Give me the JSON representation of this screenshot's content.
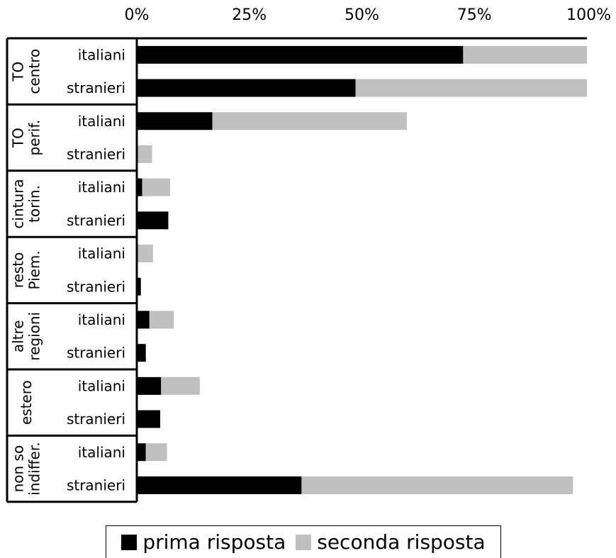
{
  "chart_data": {
    "type": "bar",
    "orientation": "horizontal",
    "stacked": true,
    "x_ticks": [
      "0%",
      "25%",
      "50%",
      "75%",
      "100%"
    ],
    "xlim": [
      0,
      100
    ],
    "groups": [
      {
        "label": [
          "TO",
          "centro"
        ]
      },
      {
        "label": [
          "TO",
          "perif."
        ]
      },
      {
        "label": [
          "cintura",
          "torin."
        ]
      },
      {
        "label": [
          "resto",
          "Piem."
        ]
      },
      {
        "label": [
          "altre",
          "regioni"
        ]
      },
      {
        "label": [
          "estero"
        ]
      },
      {
        "label": [
          "non so",
          "indiffer."
        ]
      }
    ],
    "subcategories": [
      "italiani",
      "stranieri"
    ],
    "series": [
      {
        "name": "prima risposta",
        "color": "#000000",
        "values": [
          72.5,
          48.6,
          16.8,
          0.0,
          1.2,
          7.0,
          0.0,
          0.9,
          2.8,
          2.0,
          5.4,
          5.2,
          2.0,
          36.6
        ]
      },
      {
        "name": "seconda risposta",
        "color": "#c0c0c0",
        "values": [
          27.5,
          51.4,
          43.2,
          3.4,
          6.2,
          0.0,
          3.6,
          0.0,
          5.4,
          0.0,
          8.6,
          0.0,
          4.7,
          60.3
        ]
      }
    ],
    "legend_position": "bottom",
    "grid": false
  }
}
